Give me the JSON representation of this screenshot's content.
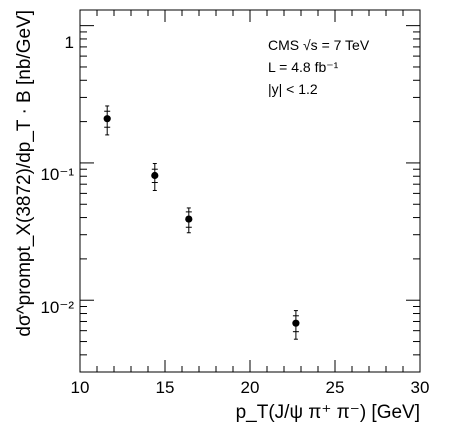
{
  "chart_data": {
    "type": "scatter",
    "title": "",
    "xlabel": "p_T(J/ψ π⁺ π⁻) [GeV]",
    "ylabel": "dσ^prompt_X(3872)/dp_T · B [nb/GeV]",
    "xlim": [
      10,
      30
    ],
    "ylim": [
      0.003,
      1.3
    ],
    "yscale": "log",
    "grid": false,
    "legend": "none",
    "x_ticks": [
      "10",
      "15",
      "20",
      "25",
      "30"
    ],
    "y_ticks": [
      "1",
      "10⁻¹",
      "10⁻²"
    ],
    "annotations": [
      "CMS √s = 7 TeV",
      "L = 4.8 fb⁻¹",
      "|y| < 1.2"
    ],
    "points": [
      {
        "x": 11.6,
        "y": 0.21,
        "err_stat": 0.028,
        "err_tot": 0.05
      },
      {
        "x": 14.4,
        "y": 0.081,
        "err_stat": 0.009,
        "err_tot": 0.018
      },
      {
        "x": 16.4,
        "y": 0.039,
        "err_stat": 0.005,
        "err_tot": 0.008
      },
      {
        "x": 22.7,
        "y": 0.0068,
        "err_stat": 0.0009,
        "err_tot": 0.0016
      }
    ],
    "color": "#000000"
  }
}
